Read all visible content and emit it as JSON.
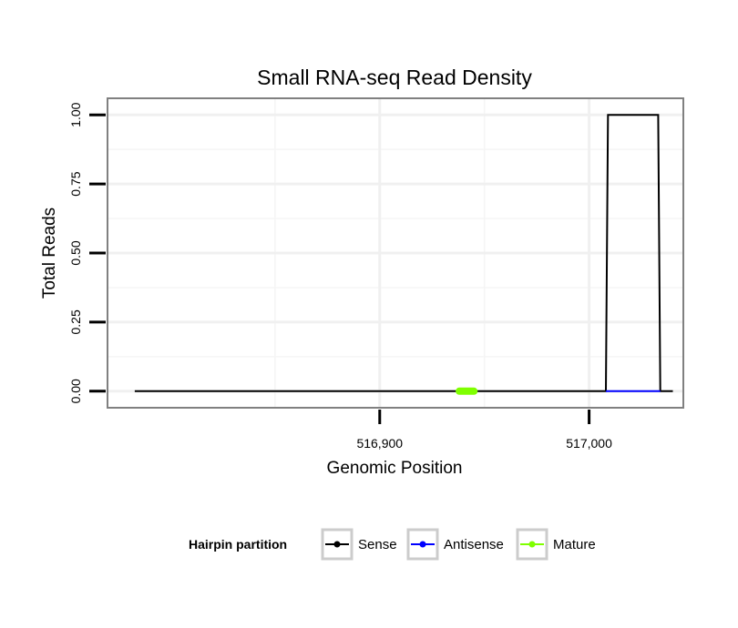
{
  "chart_data": {
    "type": "line",
    "title": "Small RNA-seq Read Density",
    "xlabel": "Genomic Position",
    "ylabel": "Total Reads",
    "xlim": [
      516770,
      517045
    ],
    "ylim": [
      -0.06,
      1.06
    ],
    "x_ticks": [
      516900,
      517000
    ],
    "x_tick_labels": [
      "516,900",
      "517,000"
    ],
    "x_minor_gridlines": [
      516850,
      516950
    ],
    "y_ticks": [
      0,
      0.25,
      0.5,
      0.75,
      1.0
    ],
    "y_tick_labels": [
      "0.00",
      "0.25",
      "0.50",
      "0.75",
      "1.00"
    ],
    "grid": true,
    "legend": {
      "title": "Hairpin partition",
      "position": "bottom",
      "entries": [
        {
          "name": "Sense",
          "color": "#000000"
        },
        {
          "name": "Antisense",
          "color": "#0000ff"
        },
        {
          "name": "Mature",
          "color": "#7fff00"
        }
      ]
    },
    "series": [
      {
        "name": "Sense",
        "color": "#000000",
        "x": [
          516783,
          517008,
          517009,
          517033,
          517034,
          517040
        ],
        "y": [
          0,
          0,
          1,
          1,
          0,
          0
        ]
      },
      {
        "name": "Antisense",
        "color": "#0000ff",
        "x": [
          517008,
          517034
        ],
        "y": [
          0,
          0
        ]
      },
      {
        "name": "Mature",
        "color": "#7fff00",
        "x": [
          516938,
          516945
        ],
        "y": [
          0,
          0
        ]
      }
    ]
  }
}
